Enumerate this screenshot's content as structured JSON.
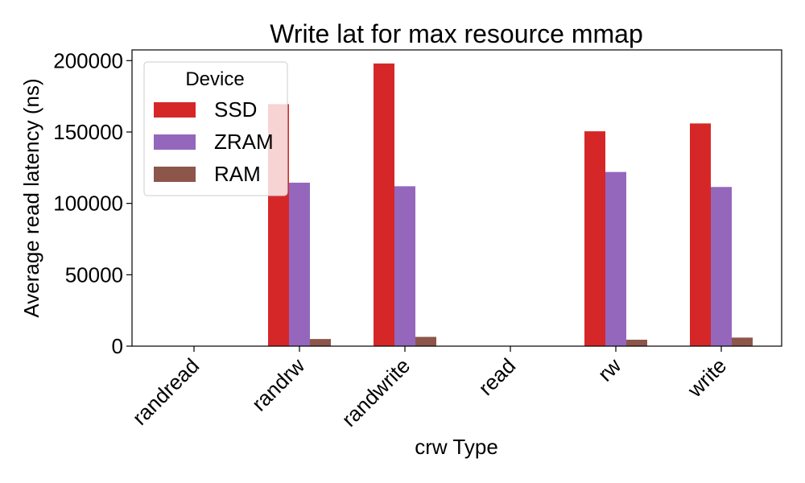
{
  "chart_data": {
    "type": "bar",
    "title": "Write lat for max resource mmap",
    "xlabel": "crw Type",
    "ylabel": "Average read latency (ns)",
    "categories": [
      "randread",
      "randrw",
      "randwrite",
      "read",
      "rw",
      "write"
    ],
    "ylim": [
      0,
      207500
    ],
    "yticks": [
      0,
      50000,
      100000,
      150000,
      200000
    ],
    "ytick_labels": [
      "0",
      "50000",
      "100000",
      "150000",
      "200000"
    ],
    "grid": false,
    "legend": {
      "title": "Device",
      "placement": "top-left"
    },
    "series": [
      {
        "name": "SSD",
        "color": "#d62728",
        "values": [
          0,
          169500,
          198000,
          0,
          150500,
          156000
        ]
      },
      {
        "name": "ZRAM",
        "color": "#9467bd",
        "values": [
          0,
          114500,
          112000,
          0,
          122000,
          111500
        ]
      },
      {
        "name": "RAM",
        "color": "#8c564b",
        "values": [
          0,
          5000,
          6500,
          0,
          4500,
          6000
        ]
      }
    ]
  }
}
